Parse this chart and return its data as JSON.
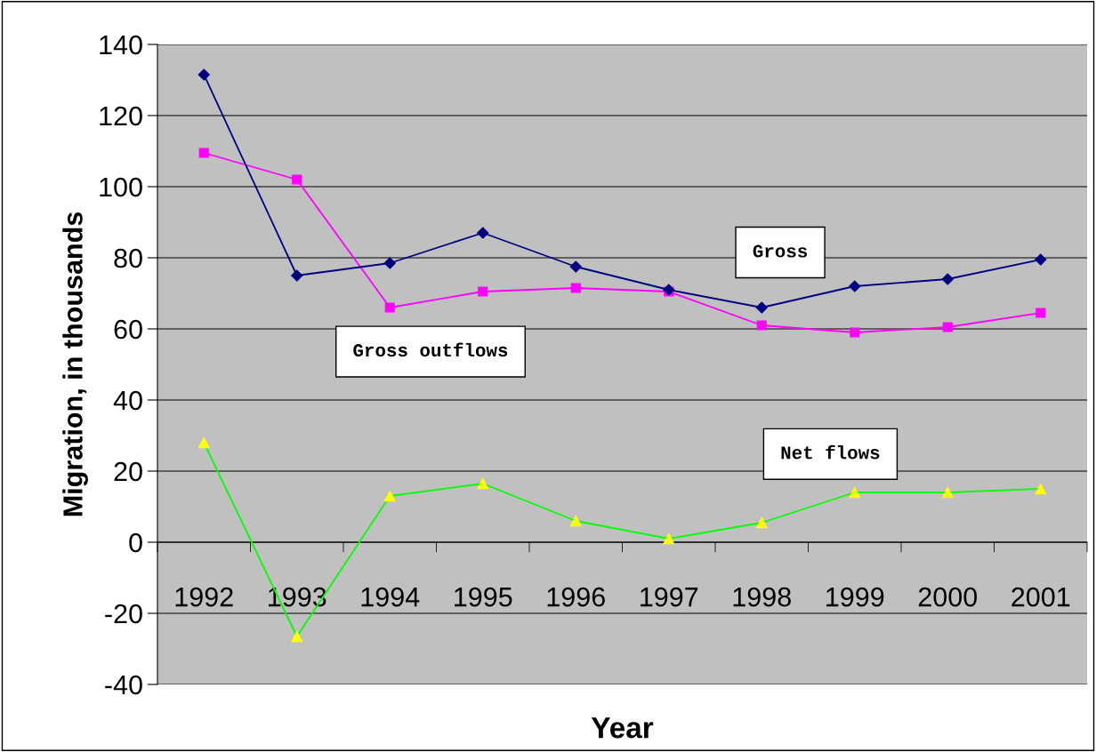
{
  "chart_data": {
    "type": "line",
    "xlabel": "Year",
    "ylabel": "Migration, in thousands",
    "categories": [
      "1992",
      "1993",
      "1994",
      "1995",
      "1996",
      "1997",
      "1998",
      "1999",
      "2000",
      "2001"
    ],
    "series": [
      {
        "name": "Gross",
        "color": "#000080",
        "marker": "diamond",
        "values": [
          131.5,
          75,
          78.5,
          87,
          77.5,
          71,
          66,
          72,
          74,
          79.5
        ]
      },
      {
        "name": "Gross outflows",
        "color": "#ff00ff",
        "marker": "square",
        "values": [
          109.5,
          102,
          66,
          70.5,
          71.5,
          70.5,
          61,
          59,
          60.5,
          64.5
        ]
      },
      {
        "name": "Net flows",
        "color": "#00ff00",
        "marker": "triangle",
        "values": [
          28,
          -26.5,
          13,
          16.5,
          6,
          1,
          5.5,
          14,
          14,
          15
        ]
      }
    ],
    "ylim": [
      -40,
      140
    ],
    "yticks": [
      -40,
      -20,
      0,
      20,
      40,
      60,
      80,
      100,
      120,
      140
    ],
    "grid": "y",
    "legend": false
  }
}
